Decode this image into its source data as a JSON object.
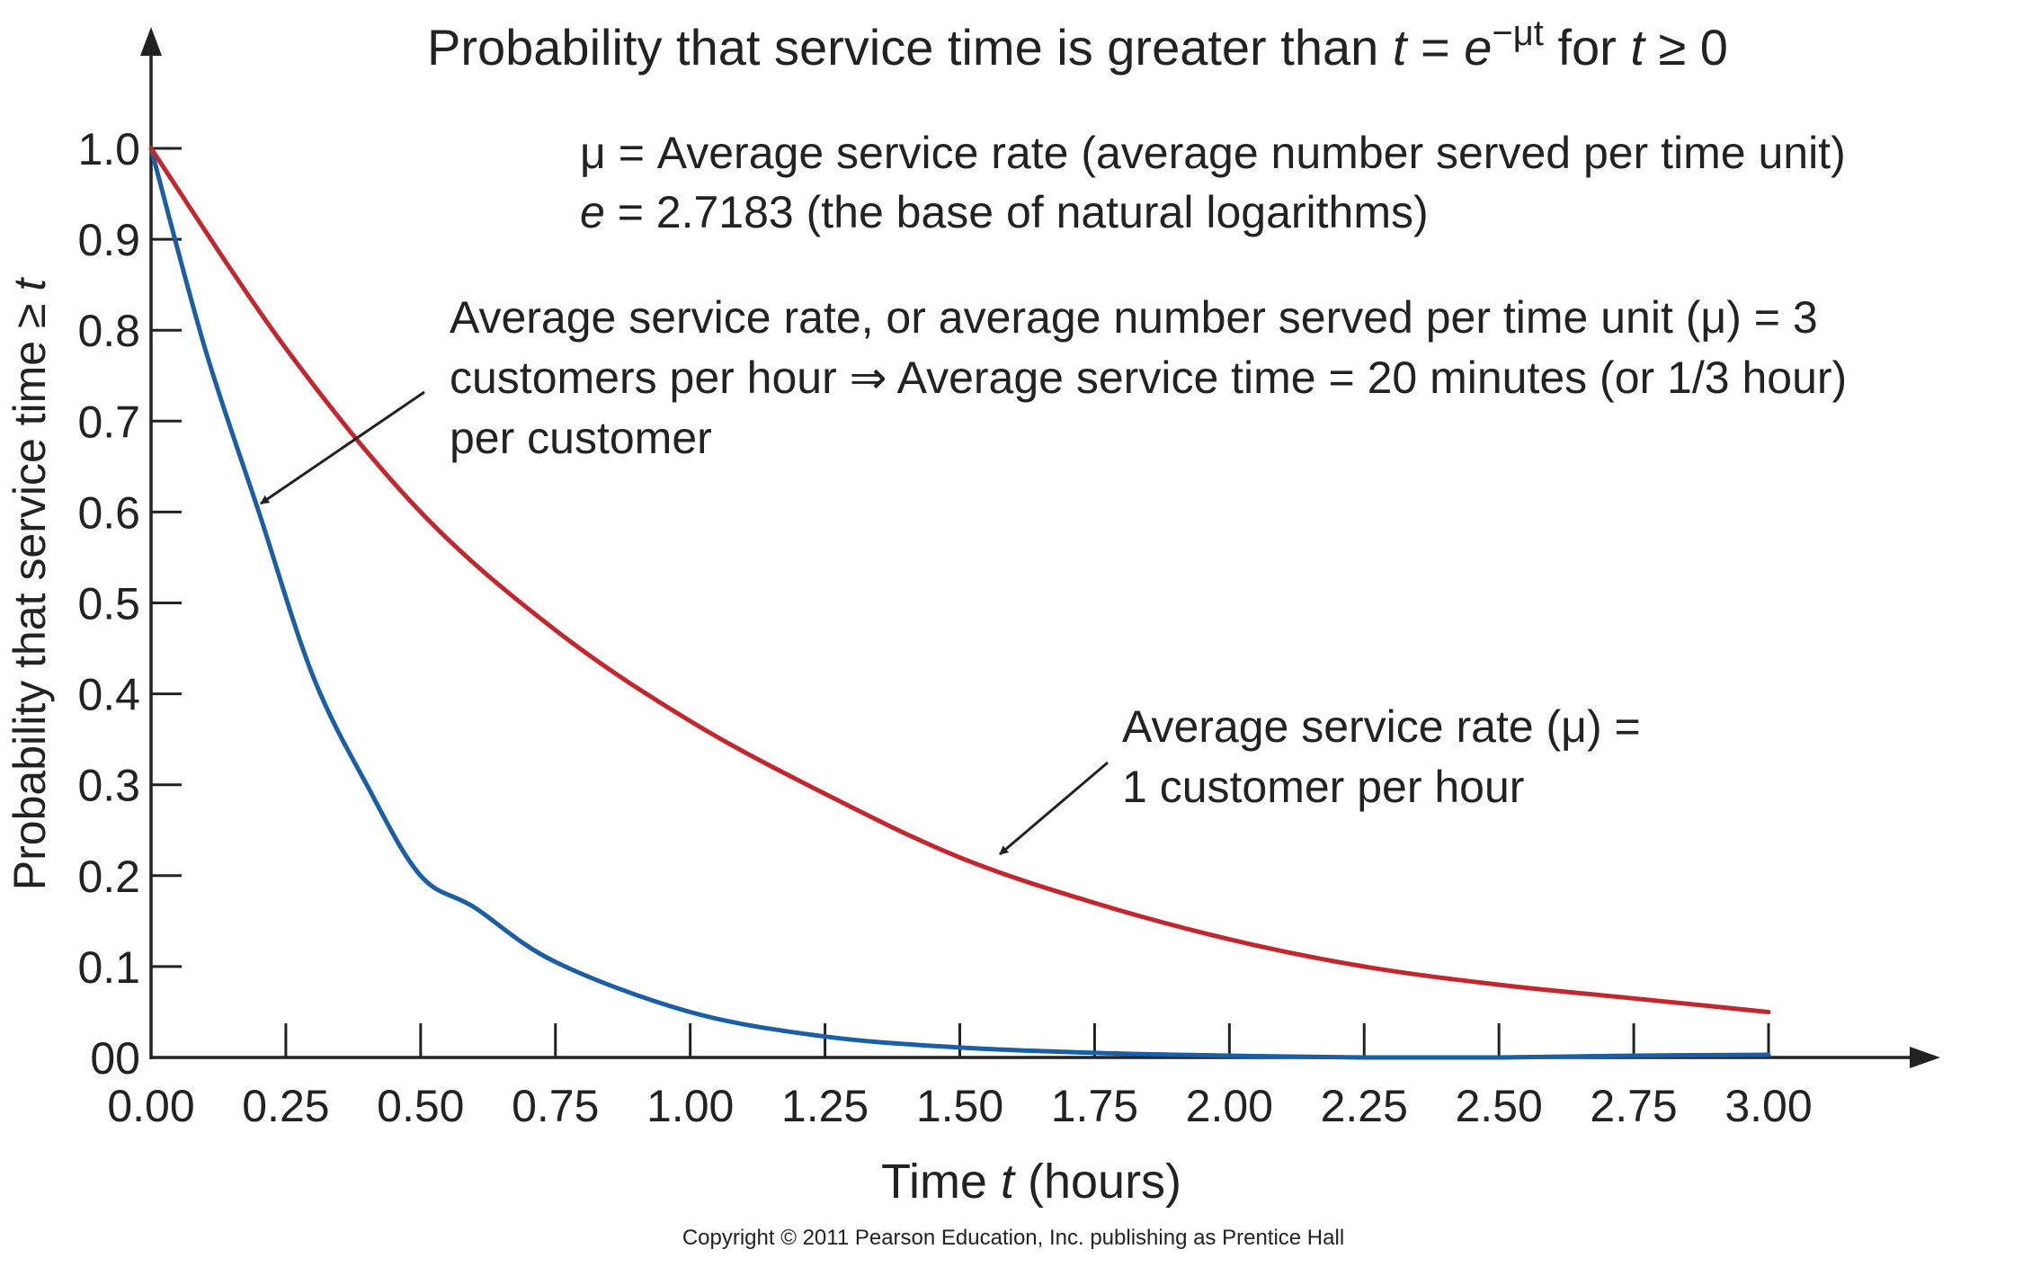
{
  "chart_data": {
    "type": "line",
    "title_prefix": "Probability that service time is greater than ",
    "title_t": "t",
    "title_eq": " = ",
    "title_e": "e",
    "title_exp": "−μt",
    "title_for": " for ",
    "title_t2": "t",
    "title_ge": " ≥ 0",
    "legend_note": {
      "mu_symbol": "μ",
      "mu_text": " = Average service rate (average number served per time unit)",
      "e_symbol": "e",
      "e_text": " = 2.7183 (the base of natural logarithms)"
    },
    "xlabel_prefix": "Time ",
    "xlabel_t": "t",
    "xlabel_suffix": " (hours)",
    "ylabel_prefix": "Probability that service time ≥ ",
    "ylabel_t": "t",
    "xlim": [
      0,
      3
    ],
    "ylim": [
      0,
      1
    ],
    "x_ticks": [
      "0.00",
      "0.25",
      "0.50",
      "0.75",
      "1.00",
      "1.25",
      "1.50",
      "1.75",
      "2.00",
      "2.25",
      "2.50",
      "2.75",
      "3.00"
    ],
    "y_ticks": [
      "00",
      "0.1",
      "0.2",
      "0.3",
      "0.4",
      "0.5",
      "0.6",
      "0.7",
      "0.8",
      "0.9",
      "1.0"
    ],
    "series": [
      {
        "rate": 3,
        "color": "#1a5ea6",
        "x": [
          0.0,
          0.1,
          0.2,
          0.3,
          0.4,
          0.5,
          0.6,
          0.75,
          1.0,
          1.25,
          1.5,
          1.75,
          2.0,
          2.25,
          2.5,
          2.75,
          3.0
        ],
        "y": [
          1.0,
          0.78,
          0.6,
          0.42,
          0.3,
          0.2,
          0.165,
          0.105,
          0.05,
          0.023,
          0.011,
          0.005,
          0.002,
          0.0,
          0.0,
          0.002,
          0.003
        ]
      },
      {
        "rate": 1,
        "color": "#c4262e",
        "x": [
          0.0,
          0.25,
          0.5,
          0.75,
          1.0,
          1.25,
          1.5,
          1.75,
          2.0,
          2.25,
          2.5,
          2.75,
          3.0
        ],
        "y": [
          1.0,
          0.78,
          0.6,
          0.47,
          0.37,
          0.29,
          0.22,
          0.17,
          0.13,
          0.1,
          0.08,
          0.065,
          0.05
        ]
      }
    ],
    "annotations": [
      {
        "lines": [
          "Average service rate, or average number served per time unit (μ) = 3",
          "customers per hour ⇒ Average service time = 20 minutes (or 1/3 hour)",
          "per customer"
        ]
      },
      {
        "lines": [
          "Average service rate (μ) =",
          "1 customer per hour"
        ]
      }
    ]
  },
  "copyright": "Copyright © 2011 Pearson Education, Inc. publishing as Prentice Hall"
}
